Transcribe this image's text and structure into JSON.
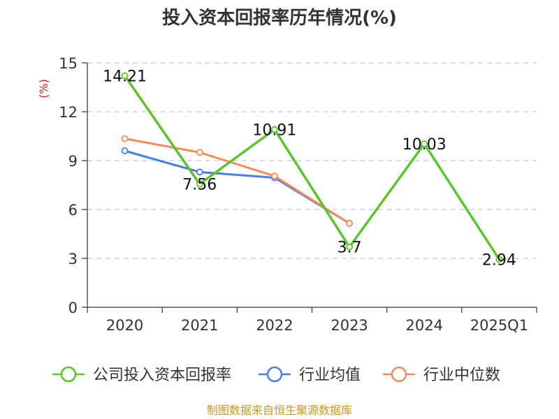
{
  "chart_data": {
    "type": "line",
    "title": "投入资本回报率历年情况(%)",
    "ylabel": "(%)",
    "xlabel": "",
    "categories": [
      "2020",
      "2021",
      "2022",
      "2023",
      "2024",
      "2025Q1"
    ],
    "ylim": [
      0,
      15
    ],
    "yticks": [
      0,
      3,
      6,
      9,
      12,
      15
    ],
    "grid": true,
    "legend_position": "bottom",
    "series": [
      {
        "name": "公司投入资本回报率",
        "color": "#5cc230",
        "values": [
          14.21,
          7.56,
          10.91,
          3.7,
          10.03,
          2.94
        ],
        "labels": [
          "14.21",
          "7.56",
          "10.91",
          "3.7",
          "10.03",
          "2.94"
        ]
      },
      {
        "name": "行业均值",
        "color": "#4a7fdb",
        "values": [
          9.6,
          8.3,
          7.95,
          5.15,
          null,
          null
        ]
      },
      {
        "name": "行业中位数",
        "color": "#f28c5a",
        "values": [
          10.35,
          9.5,
          8.05,
          5.15,
          null,
          null
        ]
      }
    ]
  },
  "source": "制图数据来自恒生聚源数据库"
}
